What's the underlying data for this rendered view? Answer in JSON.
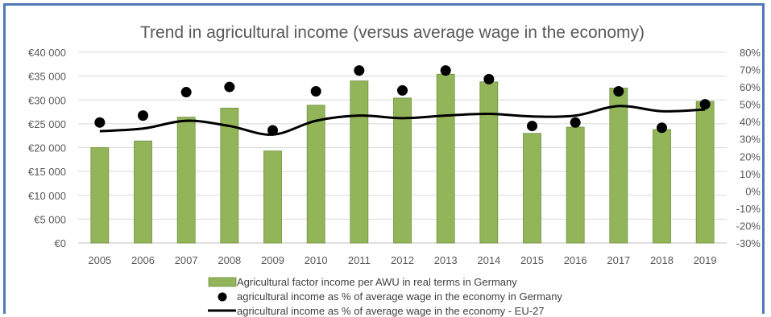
{
  "chart_data": {
    "type": "bar",
    "title": "Trend in agricultural income (versus average wage in the economy)",
    "categories": [
      "2005",
      "2006",
      "2007",
      "2008",
      "2009",
      "2010",
      "2011",
      "2012",
      "2013",
      "2014",
      "2015",
      "2016",
      "2017",
      "2018",
      "2019"
    ],
    "left_axis": {
      "ylim": [
        0,
        40000
      ],
      "ticks": [
        0,
        5000,
        10000,
        15000,
        20000,
        25000,
        30000,
        35000,
        40000
      ],
      "tick_labels": [
        "€0",
        "€5 000",
        "€10 000",
        "€15 000",
        "€20 000",
        "€25 000",
        "€30 000",
        "€35 000",
        "€40 000"
      ]
    },
    "right_axis": {
      "ylim": [
        -30,
        80
      ],
      "ticks": [
        -30,
        -20,
        -10,
        0,
        10,
        20,
        30,
        40,
        50,
        60,
        70,
        80
      ],
      "tick_labels": [
        "-30%",
        "-20%",
        "-10%",
        "0%",
        "10%",
        "20%",
        "30%",
        "40%",
        "50%",
        "60%",
        "70%",
        "80%"
      ]
    },
    "series": [
      {
        "name": "Agricultural factor income per AWU in real terms in Germany",
        "kind": "bar",
        "axis": "left",
        "color": "#93b55a",
        "values": [
          20000,
          21400,
          26400,
          28300,
          19300,
          28900,
          34000,
          30400,
          35400,
          33800,
          23000,
          24300,
          32500,
          23800,
          29700
        ]
      },
      {
        "name": "agricultural income as % of average wage in the economy in Germany",
        "kind": "scatter",
        "axis": "right",
        "color": "#000000",
        "values": [
          39.5,
          43.5,
          57,
          60,
          35,
          57.5,
          69.5,
          58,
          69.5,
          64.5,
          37.5,
          39.5,
          57.5,
          36.5,
          50
        ]
      },
      {
        "name": "agricultural income as % of average wage in the economy - EU-27",
        "kind": "line",
        "axis": "right",
        "color": "#000000",
        "values": [
          34.5,
          36,
          40.5,
          37.5,
          32.5,
          40.5,
          43.5,
          42,
          43.5,
          44.5,
          43,
          43.5,
          49,
          46,
          47
        ]
      }
    ],
    "grid": true,
    "legend_position": "bottom"
  }
}
